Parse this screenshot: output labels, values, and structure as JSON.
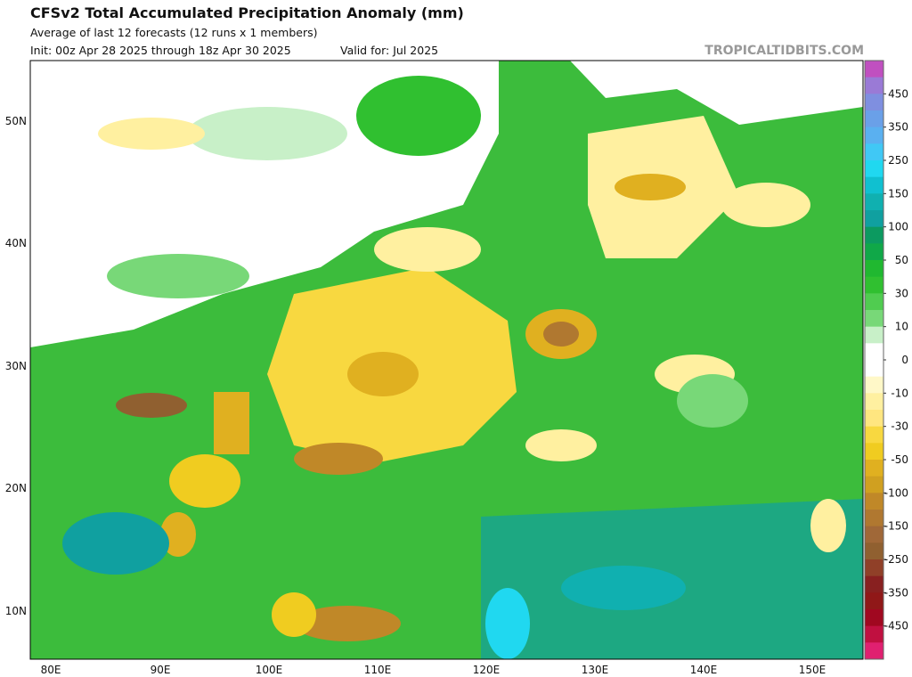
{
  "header": {
    "title": "CFSv2 Total Accumulated Precipitation Anomaly (mm)",
    "subtitle": "Average of last 12 forecasts (12 runs x 1 members)",
    "init": "Init: 00z Apr 28 2025 through 18z Apr 30 2025",
    "valid": "Valid for: Jul 2025",
    "source": "TROPICALTIDBITS.COM"
  },
  "map": {
    "lat_labels": [
      "50N",
      "40N",
      "30N",
      "20N",
      "10N"
    ],
    "lon_labels": [
      "80E",
      "90E",
      "100E",
      "110E",
      "120E",
      "130E",
      "140E",
      "150E"
    ]
  },
  "colorbar": {
    "labels": [
      450,
      350,
      250,
      150,
      100,
      50,
      30,
      10,
      0,
      -10,
      -30,
      -50,
      -100,
      -150,
      -250,
      -350,
      -450
    ],
    "colors": [
      "#c050c0",
      "#9a7ad6",
      "#7f8fe0",
      "#6aa0e8",
      "#5ab0f0",
      "#40c8f5",
      "#20d8f0",
      "#10c0d0",
      "#10b0b0",
      "#10a0a0",
      "#0c9a60",
      "#10a848",
      "#20b830",
      "#30c030",
      "#50cc50",
      "#78d878",
      "#c8f0c8",
      "#ffffff",
      "#ffffff",
      "#fff8c8",
      "#fff0a0",
      "#ffe680",
      "#f8d840",
      "#f0cc20",
      "#e0b020",
      "#d0a020",
      "#c08828",
      "#b07830",
      "#a06838",
      "#906030",
      "#904028",
      "#882020",
      "#901818",
      "#a00820",
      "#c01040",
      "#e02070"
    ]
  }
}
